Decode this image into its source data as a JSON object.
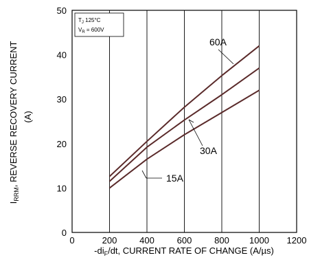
{
  "chart_data": {
    "type": "line",
    "xlabel_prefix": "-di",
    "xlabel_sub": "F",
    "xlabel_suffix": "/dt, CURRENT RATE OF CHANGE (A/µs)",
    "ylabel_sym": "I",
    "ylabel_sub": "RRM",
    "ylabel_text": ", REVERSE RECOVERY CURRENT",
    "ylabel_unit": "(A)",
    "xlim": [
      0,
      1200
    ],
    "ylim": [
      0,
      50
    ],
    "xticks": [
      0,
      200,
      400,
      600,
      800,
      1000,
      1200
    ],
    "yticks": [
      0,
      10,
      20,
      30,
      40,
      50
    ],
    "grid_x": [
      200,
      400,
      600,
      800,
      1000
    ],
    "conditions": {
      "tj_sym": "T",
      "tj_sub": "J",
      "tj_val": " 125°C",
      "vr_sym": "V",
      "vr_sub": "R",
      "vr_val": " = 600V"
    },
    "series": [
      {
        "name": "60A",
        "x": [
          200,
          400,
          600,
          800,
          1000
        ],
        "y": [
          12.6,
          20.5,
          28.2,
          35.3,
          42.0
        ]
      },
      {
        "name": "30A",
        "x": [
          200,
          400,
          600,
          800,
          1000
        ],
        "y": [
          11.5,
          19.2,
          25.3,
          31.0,
          37.0
        ]
      },
      {
        "name": "15A",
        "x": [
          200,
          400,
          600,
          800,
          1000
        ],
        "y": [
          10.0,
          16.5,
          22.0,
          27.0,
          32.0
        ]
      }
    ]
  }
}
